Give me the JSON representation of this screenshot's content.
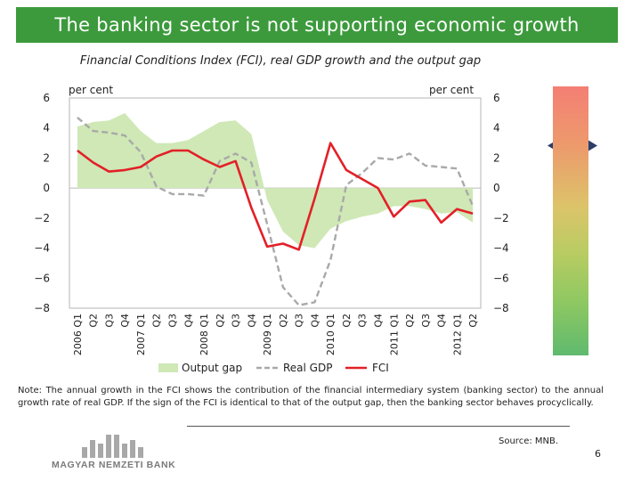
{
  "header": {
    "title": "The banking sector is not supporting economic growth"
  },
  "chart_data": {
    "type": "line",
    "title": "Financial Conditions Index (FCI), real GDP growth and the output gap",
    "ylabel_left": "per cent",
    "ylabel_right": "per cent",
    "ylim": [
      -8,
      6
    ],
    "yticks": [
      6,
      4,
      2,
      0,
      -2,
      -4,
      -6,
      -8
    ],
    "categories": [
      "2006 Q1",
      "Q2",
      "Q3",
      "Q4",
      "2007 Q1",
      "Q2",
      "Q3",
      "Q4",
      "2008 Q1",
      "Q2",
      "Q3",
      "Q4",
      "2009 Q1",
      "Q2",
      "Q3",
      "Q4",
      "2010 Q1",
      "Q2",
      "Q3",
      "Q4",
      "2011 Q1",
      "Q2",
      "Q3",
      "Q4",
      "2012 Q1",
      "Q2"
    ],
    "series": [
      {
        "name": "Output gap",
        "kind": "area",
        "color": "#cfe8b6",
        "values": [
          4.1,
          4.4,
          4.5,
          5.0,
          3.8,
          3.0,
          3.0,
          3.2,
          3.8,
          4.4,
          4.5,
          3.6,
          -0.8,
          -2.9,
          -3.8,
          -4.0,
          -2.7,
          -2.2,
          -1.9,
          -1.7,
          -1.2,
          -1.2,
          -1.4,
          -1.7,
          -1.6,
          -2.3
        ]
      },
      {
        "name": "Real GDP",
        "kind": "dashed",
        "color": "#a9a9a9",
        "values": [
          4.7,
          3.8,
          3.7,
          3.5,
          2.4,
          0.1,
          -0.4,
          -0.4,
          -0.5,
          1.8,
          2.3,
          1.7,
          -2.4,
          -6.6,
          -7.8,
          -7.6,
          -4.8,
          0.2,
          1.0,
          2.0,
          1.9,
          2.3,
          1.5,
          1.4,
          1.3,
          -1.2
        ]
      },
      {
        "name": "FCI",
        "kind": "solid",
        "color": "#e32027",
        "values": [
          2.5,
          1.7,
          1.1,
          1.2,
          1.4,
          2.1,
          2.5,
          2.5,
          1.9,
          1.4,
          1.8,
          -1.3,
          -3.9,
          -3.7,
          -4.1,
          -0.7,
          3.0,
          1.2,
          0.6,
          0.0,
          -1.9,
          -0.9,
          -0.8,
          -2.3,
          -1.4,
          -1.7
        ]
      }
    ]
  },
  "legend": {
    "output_gap": "Output gap",
    "real_gdp": "Real GDP",
    "fci": "FCI"
  },
  "note": "Note: The annual growth in the FCI shows the contribution of the financial intermediary system (banking sector) to the annual growth rate of real GDP. If the sign of the FCI is identical to that of the output gap, then the banking sector behaves procyclically.",
  "source": "Source: MNB.",
  "page_number": "6",
  "logo": {
    "text": "MAGYAR NEMZETI BANK",
    "color": "#9a9a9a"
  },
  "indicator": {
    "arrow_color": "#2c3e6b",
    "level": 0.22
  }
}
